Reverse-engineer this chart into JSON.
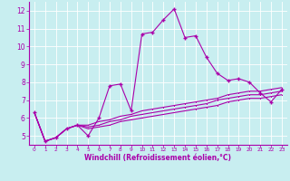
{
  "xlabel": "Windchill (Refroidissement éolien,°C)",
  "background_color": "#c8eef0",
  "line_color": "#aa00aa",
  "grid_color": "#ffffff",
  "xlim": [
    -0.5,
    23.5
  ],
  "ylim": [
    4.5,
    12.5
  ],
  "yticks": [
    5,
    6,
    7,
    8,
    9,
    10,
    11,
    12
  ],
  "xticks": [
    0,
    1,
    2,
    3,
    4,
    5,
    6,
    7,
    8,
    9,
    10,
    11,
    12,
    13,
    14,
    15,
    16,
    17,
    18,
    19,
    20,
    21,
    22,
    23
  ],
  "main_series": [
    6.3,
    4.7,
    4.9,
    5.4,
    5.6,
    5.0,
    6.0,
    7.8,
    7.9,
    6.4,
    10.7,
    10.8,
    11.5,
    12.1,
    10.5,
    10.6,
    9.4,
    8.5,
    8.1,
    8.2,
    8.0,
    7.4,
    6.9,
    7.6
  ],
  "smooth_series": [
    [
      6.3,
      4.7,
      4.9,
      5.4,
      5.6,
      5.6,
      5.8,
      5.9,
      6.1,
      6.2,
      6.4,
      6.5,
      6.6,
      6.7,
      6.8,
      6.9,
      7.0,
      7.1,
      7.3,
      7.4,
      7.5,
      7.5,
      7.6,
      7.7
    ],
    [
      6.3,
      4.7,
      4.9,
      5.4,
      5.6,
      5.5,
      5.6,
      5.8,
      5.9,
      6.1,
      6.2,
      6.3,
      6.4,
      6.5,
      6.6,
      6.7,
      6.8,
      7.0,
      7.1,
      7.2,
      7.3,
      7.3,
      7.4,
      7.5
    ],
    [
      6.3,
      4.7,
      4.9,
      5.4,
      5.6,
      5.4,
      5.5,
      5.6,
      5.8,
      5.9,
      6.0,
      6.1,
      6.2,
      6.3,
      6.4,
      6.5,
      6.6,
      6.7,
      6.9,
      7.0,
      7.1,
      7.1,
      7.2,
      7.3
    ]
  ]
}
